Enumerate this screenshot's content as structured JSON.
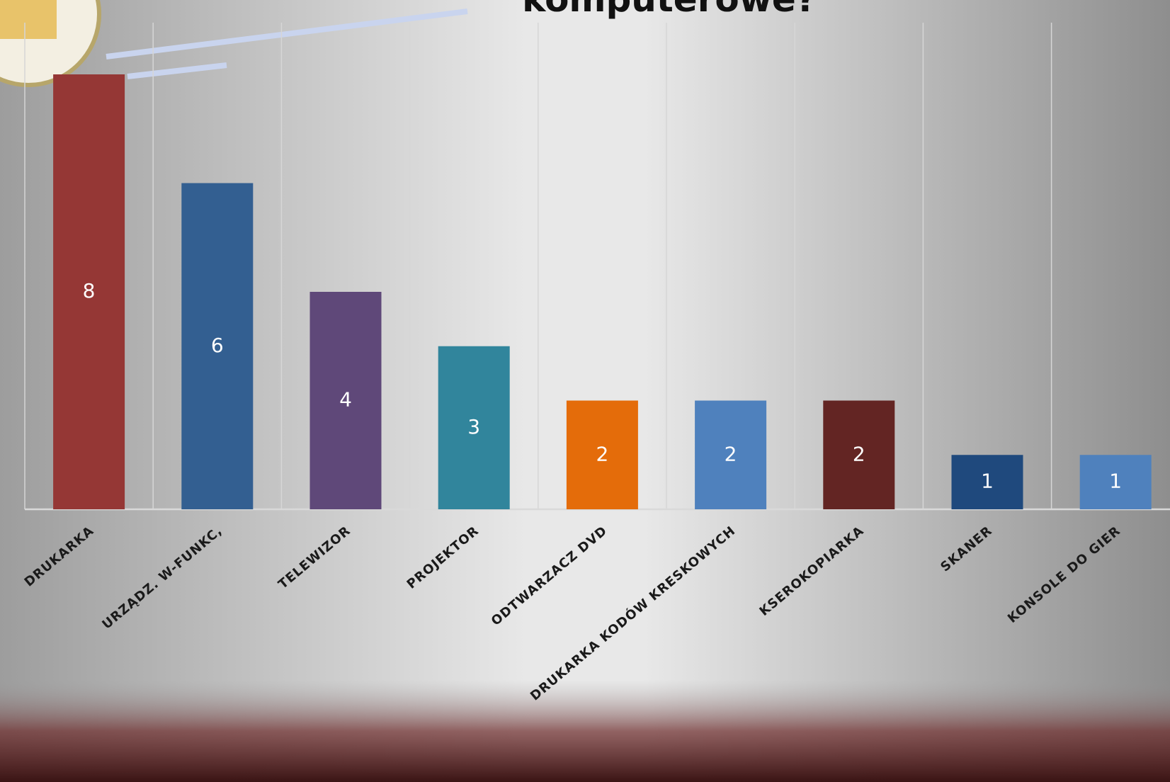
{
  "chart_data": {
    "type": "bar",
    "title": "komputerowe?",
    "categories": [
      "DRUKARKA",
      "URZĄDZ. W-FUNKC,",
      "TELEWIZOR",
      "PROJEKTOR",
      "ODTWARZACZ  DVD",
      "DRUKARKA  KODÓW  KRESKOWYCH",
      "KSEROKOPIARKA",
      "SKANER",
      "KONSOLE  DO  GIER"
    ],
    "values": [
      8,
      6,
      4,
      3,
      2,
      2,
      2,
      1,
      1
    ],
    "colors": [
      "#953735",
      "#335f91",
      "#5f4879",
      "#31859c",
      "#e46c0a",
      "#4f81bd",
      "#632523",
      "#1f497d",
      "#4f81bd"
    ],
    "grid": true
  }
}
